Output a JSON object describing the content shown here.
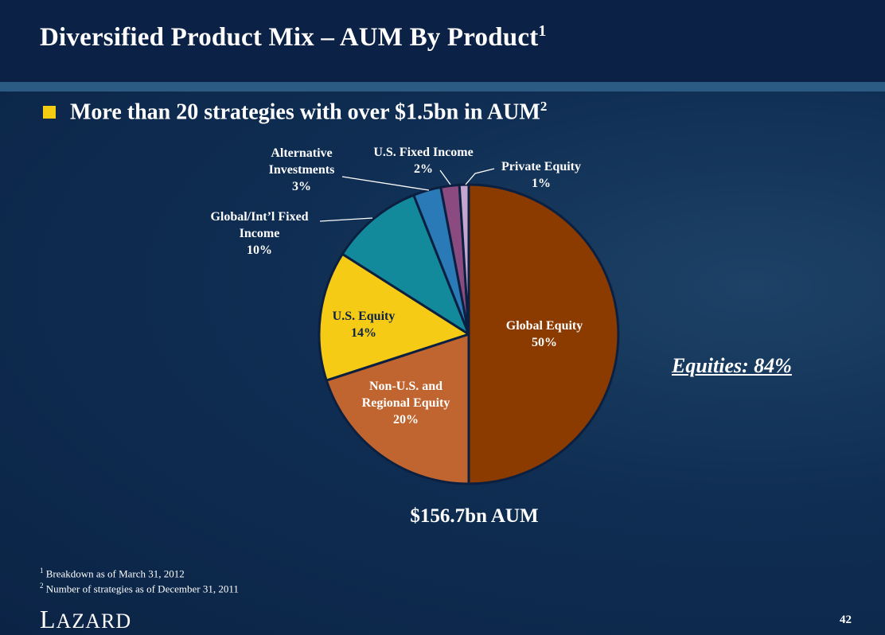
{
  "slide": {
    "title": "Diversified Product Mix – AUM By Product",
    "title_footnote_mark": "1",
    "bullet": "More than 20 strategies with over $1.5bn in AUM",
    "bullet_footnote_mark": "2",
    "equities_note": "Equities: 84%",
    "aum_total": "$156.7bn AUM",
    "footnotes": [
      {
        "mark": "1",
        "text": "Breakdown as of March 31, 2012"
      },
      {
        "mark": "2",
        "text": "Number of strategies as of December 31, 2011"
      }
    ],
    "logo": "LAZARD",
    "logo_first": "L",
    "logo_rest": "AZARD",
    "page_number": "42"
  },
  "colors": {
    "background": "#0f2d52",
    "bullet": "#f4cc12",
    "slice_border": "#0b2040"
  },
  "chart_data": {
    "type": "pie",
    "title": "",
    "start": "12 o'clock",
    "direction": "clockwise",
    "slices": [
      {
        "label": "Global Equity",
        "value": 50,
        "value_label": "50%",
        "color": "#8b3a00"
      },
      {
        "label": "Non-U.S. and Regional Equity",
        "value": 20,
        "value_label": "20%",
        "color": "#c06530"
      },
      {
        "label": "U.S. Equity",
        "value": 14,
        "value_label": "14%",
        "color": "#f5cb16"
      },
      {
        "label": "Global/Int’l Fixed Income",
        "value": 10,
        "value_label": "10%",
        "color": "#128a9c"
      },
      {
        "label": "Alternative Investments",
        "value": 3,
        "value_label": "3%",
        "color": "#2a7ab8"
      },
      {
        "label": "U.S. Fixed Income",
        "value": 2,
        "value_label": "2%",
        "color": "#8b4a80"
      },
      {
        "label": "Private Equity",
        "value": 1,
        "value_label": "1%",
        "color": "#c6a6cf"
      }
    ],
    "labels": {
      "global_equity": [
        "Global Equity",
        "50%"
      ],
      "non_us": [
        "Non-U.S. and",
        "Regional Equity",
        "20%"
      ],
      "us_equity": [
        "U.S. Equity",
        "14%"
      ],
      "global_fixed": [
        "Global/Int’l Fixed",
        "Income",
        "10%"
      ],
      "alternative": [
        "Alternative",
        "Investments",
        "3%"
      ],
      "us_fixed": [
        "U.S. Fixed Income",
        "2%"
      ],
      "private_equity": [
        "Private Equity",
        "1%"
      ]
    }
  }
}
